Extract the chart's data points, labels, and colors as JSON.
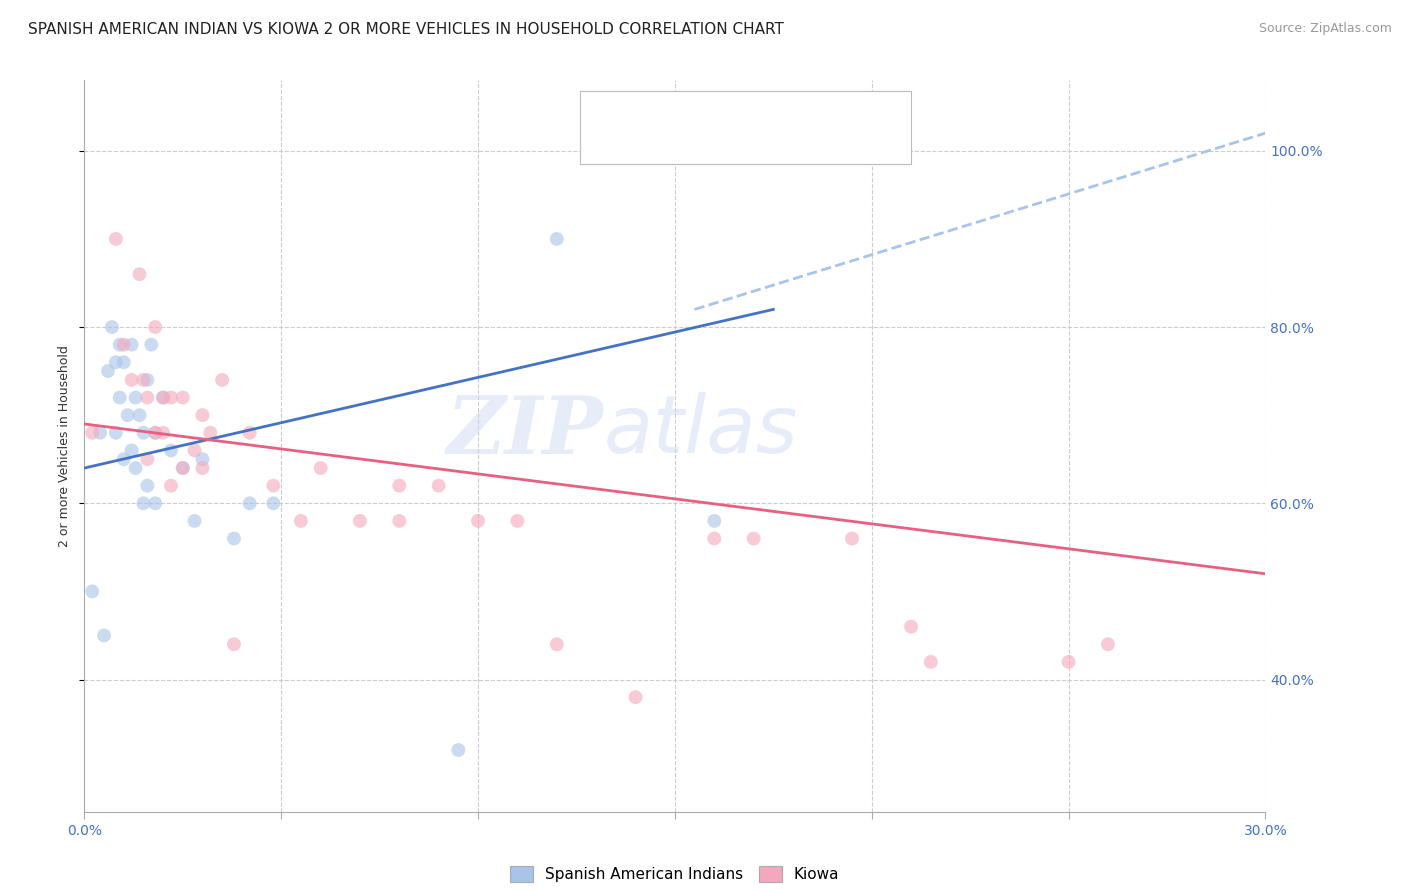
{
  "title": "SPANISH AMERICAN INDIAN VS KIOWA 2 OR MORE VEHICLES IN HOUSEHOLD CORRELATION CHART",
  "source": "Source: ZipAtlas.com",
  "ylabel_label": "2 or more Vehicles in Household",
  "xlim": [
    0.0,
    0.3
  ],
  "ylim": [
    0.25,
    1.08
  ],
  "xticks": [
    0.0,
    0.05,
    0.1,
    0.15,
    0.2,
    0.25,
    0.3
  ],
  "xtick_labels": [
    "0.0%",
    "",
    "",
    "",
    "",
    "",
    "30.0%"
  ],
  "yticks": [
    0.4,
    0.6,
    0.8,
    1.0
  ],
  "ytick_labels": [
    "40.0%",
    "60.0%",
    "80.0%",
    "100.0%"
  ],
  "watermark_zip": "ZIP",
  "watermark_atlas": "atlas",
  "blue_color": "#A8C4E8",
  "pink_color": "#F4A8BC",
  "line_blue": "#4472C4",
  "line_pink": "#E86080",
  "dashed_line_color": "#A8C4E8",
  "blue_scatter_x": [
    0.002,
    0.004,
    0.005,
    0.006,
    0.007,
    0.008,
    0.008,
    0.009,
    0.009,
    0.01,
    0.01,
    0.011,
    0.012,
    0.012,
    0.013,
    0.013,
    0.014,
    0.015,
    0.015,
    0.016,
    0.016,
    0.017,
    0.018,
    0.018,
    0.02,
    0.022,
    0.025,
    0.028,
    0.03,
    0.038,
    0.042,
    0.048,
    0.095,
    0.12,
    0.16
  ],
  "blue_scatter_y": [
    0.5,
    0.68,
    0.45,
    0.75,
    0.8,
    0.76,
    0.68,
    0.78,
    0.72,
    0.76,
    0.65,
    0.7,
    0.78,
    0.66,
    0.72,
    0.64,
    0.7,
    0.68,
    0.6,
    0.74,
    0.62,
    0.78,
    0.68,
    0.6,
    0.72,
    0.66,
    0.64,
    0.58,
    0.65,
    0.56,
    0.6,
    0.6,
    0.32,
    0.9,
    0.58
  ],
  "pink_scatter_x": [
    0.002,
    0.008,
    0.01,
    0.012,
    0.014,
    0.015,
    0.016,
    0.016,
    0.018,
    0.018,
    0.02,
    0.02,
    0.022,
    0.022,
    0.025,
    0.025,
    0.028,
    0.03,
    0.03,
    0.032,
    0.035,
    0.038,
    0.042,
    0.048,
    0.055,
    0.06,
    0.07,
    0.08,
    0.08,
    0.09,
    0.1,
    0.11,
    0.12,
    0.14,
    0.16,
    0.17,
    0.195,
    0.21,
    0.215,
    0.25,
    0.26
  ],
  "pink_scatter_y": [
    0.68,
    0.9,
    0.78,
    0.74,
    0.86,
    0.74,
    0.72,
    0.65,
    0.8,
    0.68,
    0.72,
    0.68,
    0.72,
    0.62,
    0.72,
    0.64,
    0.66,
    0.7,
    0.64,
    0.68,
    0.74,
    0.44,
    0.68,
    0.62,
    0.58,
    0.64,
    0.58,
    0.62,
    0.58,
    0.62,
    0.58,
    0.58,
    0.44,
    0.38,
    0.56,
    0.56,
    0.56,
    0.46,
    0.42,
    0.42,
    0.44
  ],
  "blue_line_x": [
    0.0,
    0.175
  ],
  "blue_line_y": [
    0.64,
    0.82
  ],
  "pink_line_x": [
    0.0,
    0.3
  ],
  "pink_line_y": [
    0.69,
    0.52
  ],
  "dashed_line_x": [
    0.155,
    0.3
  ],
  "dashed_line_y": [
    0.82,
    1.02
  ],
  "grid_color": "#CCCCCC",
  "background_color": "#FFFFFF",
  "title_fontsize": 11,
  "axis_label_fontsize": 9,
  "tick_fontsize": 10,
  "scatter_size": 100,
  "scatter_alpha": 0.6,
  "line_width": 2.0
}
